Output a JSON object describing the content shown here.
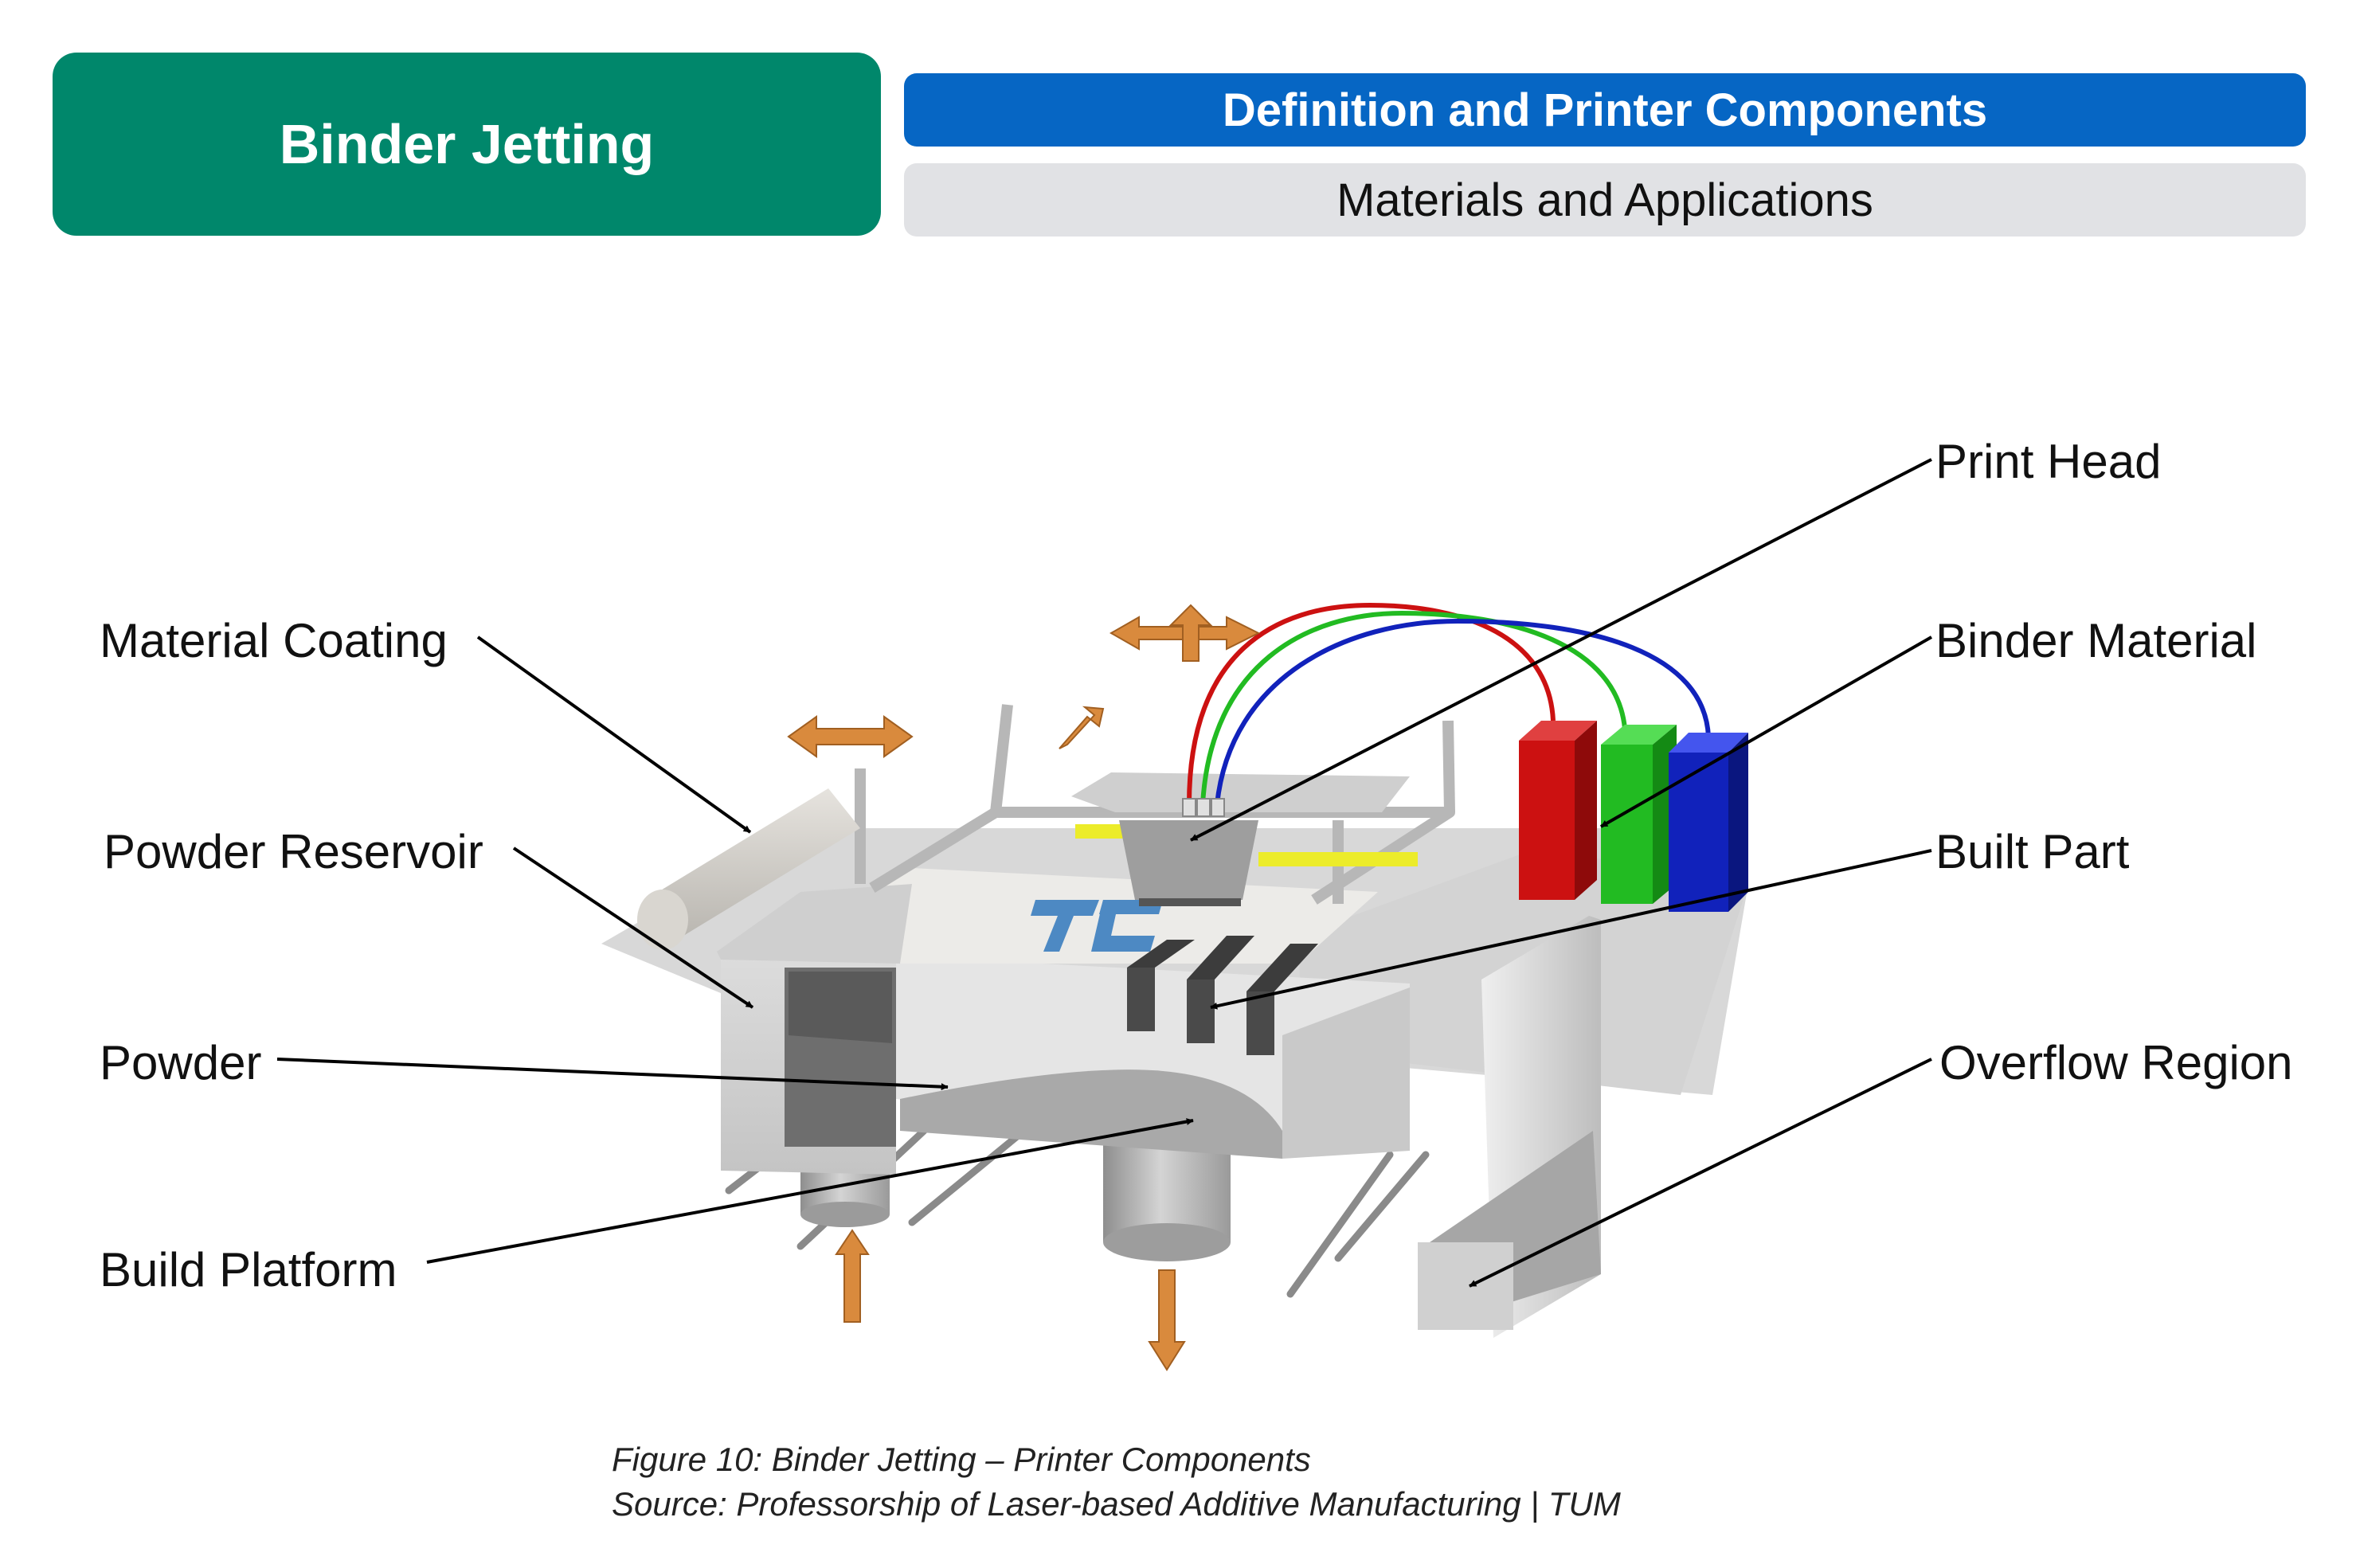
{
  "header": {
    "title": "Binder Jetting",
    "tabs": [
      {
        "label": "Definition and Printer Components",
        "active": true
      },
      {
        "label": "Materials and Applications",
        "active": false
      }
    ]
  },
  "diagram": {
    "labels": {
      "material_coating": "Material Coating",
      "powder_reservoir": "Powder Reservoir",
      "powder": "Powder",
      "build_platform": "Build Platform",
      "print_head": "Print Head",
      "binder_material": "Binder Material",
      "built_part": "Built Part",
      "overflow_region": "Overflow Region"
    },
    "logo_text": "TUM",
    "colors": {
      "title_bg": "#00876b",
      "active_tab": "#0666c4",
      "inactive_tab": "#e1e2e5",
      "binder_red": "#cc1111",
      "binder_green": "#22bb22",
      "binder_blue": "#1122bb",
      "arrow_orange": "#d98a3d",
      "logo_blue": "#3c7fc0"
    }
  },
  "caption": {
    "line1": "Figure 10: Binder Jetting – Printer Components",
    "line2": "Source: Professorship of Laser-based Additive Manufacturing | TUM"
  }
}
